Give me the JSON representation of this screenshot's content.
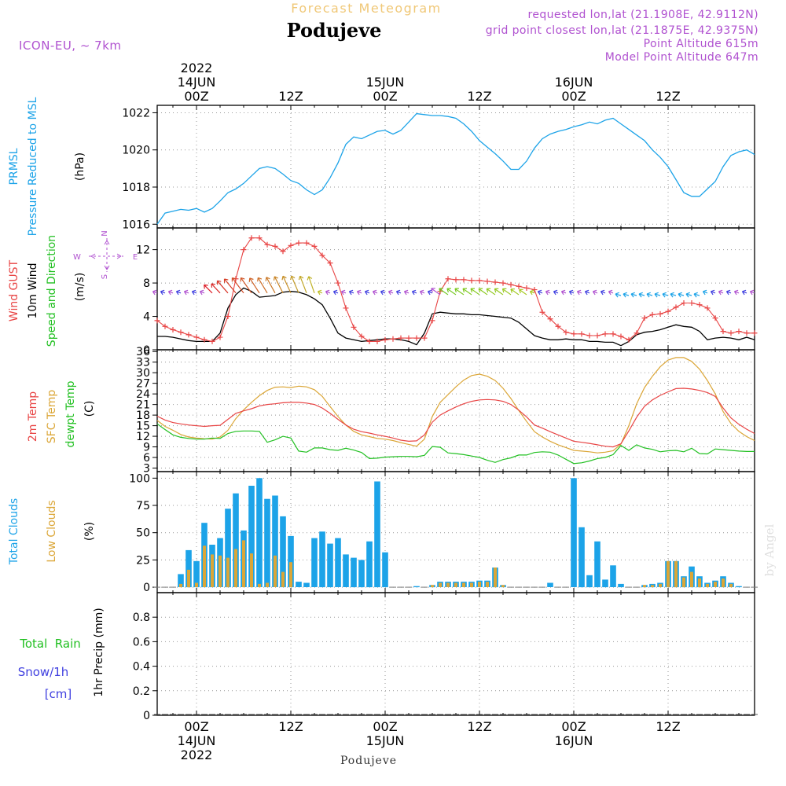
{
  "header": {
    "supertitle": "Forecast Meteogram",
    "location": "Podujeve",
    "model": "ICON-EU, ~ 7km",
    "requested": "requested lon,lat (21.1908E, 42.9112N)",
    "grid": "grid point closest lon,lat (21.1875E, 42.9375N)",
    "point_alt": "Point Altitude 615m",
    "model_alt": "Model Point Altitude 647m",
    "footer": "Podujeve",
    "credit": "by Angel"
  },
  "colors": {
    "pressure": "#1ca3e8",
    "gust": "#e84545",
    "wind": "#000000",
    "dir": "#22c022",
    "purple": "#b052d0",
    "t2m": "#e84545",
    "sfc": "#dba637",
    "dew": "#22c022",
    "total_cloud": "#1ca3e8",
    "low_cloud": "#dba637",
    "rain": "#22c022",
    "snow": "#4040e0"
  },
  "time_axis": {
    "top_row1": [
      {
        "t": 0,
        "label": "2022"
      },
      {
        "t": 24,
        "label": ""
      },
      {
        "t": 48,
        "label": ""
      }
    ],
    "top_row2": [
      {
        "t": 0,
        "label": "14JUN"
      },
      {
        "t": 24,
        "label": "15JUN"
      },
      {
        "t": 48,
        "label": "16JUN"
      }
    ],
    "top_row3": [
      {
        "t": 0,
        "label": "00Z"
      },
      {
        "t": 12,
        "label": "12Z"
      },
      {
        "t": 24,
        "label": "00Z"
      },
      {
        "t": 36,
        "label": "12Z"
      },
      {
        "t": 48,
        "label": "00Z"
      },
      {
        "t": 60,
        "label": "12Z"
      }
    ],
    "bottom_row1": [
      {
        "t": 0,
        "label": "00Z"
      },
      {
        "t": 12,
        "label": "12Z"
      },
      {
        "t": 24,
        "label": "00Z"
      },
      {
        "t": 36,
        "label": "12Z"
      },
      {
        "t": 48,
        "label": "00Z"
      },
      {
        "t": 60,
        "label": "12Z"
      }
    ],
    "bottom_row2": [
      {
        "t": 0,
        "label": "14JUN"
      },
      {
        "t": 24,
        "label": "15JUN"
      },
      {
        "t": 48,
        "label": "16JUN"
      }
    ],
    "bottom_row3": [
      {
        "t": 0,
        "label": "2022"
      }
    ],
    "range": [
      -5,
      71
    ]
  },
  "panel_labels": {
    "pressure": [
      "PRMSL",
      "Pressure Reduced to MSL",
      "(hPa)"
    ],
    "wind": [
      "Wind GUST",
      "10m Wind",
      "Speed and Direction",
      "(m/s)"
    ],
    "compass": {
      "n": "N",
      "s": "S",
      "w": "W",
      "e": "E"
    },
    "temp": [
      "2m Temp",
      "SFC Temp",
      "dewpt Temp",
      "(C)"
    ],
    "cloud": [
      "Total Clouds",
      "Low Clouds",
      "(%)"
    ],
    "precip": [
      "Total  Rain",
      "Snow/1h",
      "[cm]",
      "1hr Precip (mm)"
    ]
  },
  "chart_data": [
    {
      "type": "line",
      "name": "PRMSL",
      "ylim": [
        1015.8,
        1022.4
      ],
      "yticks": [
        1016,
        1018,
        1020,
        1022
      ],
      "x": [
        -5,
        -4,
        -3,
        -2,
        -1,
        0,
        1,
        2,
        3,
        4,
        5,
        6,
        7,
        8,
        9,
        10,
        11,
        12,
        13,
        14,
        15,
        16,
        17,
        18,
        19,
        20,
        21,
        22,
        23,
        24,
        25,
        26,
        27,
        28,
        29,
        30,
        31,
        32,
        33,
        34,
        35,
        36,
        37,
        38,
        39,
        40,
        41,
        42,
        43,
        44,
        45,
        46,
        47,
        48,
        49,
        50,
        51,
        52,
        53,
        54,
        55,
        56,
        57,
        58,
        59,
        60,
        61,
        62,
        63,
        64,
        65,
        66,
        67,
        68,
        69,
        70,
        71
      ],
      "values": [
        1016.0,
        1016.6,
        1016.7,
        1016.8,
        1016.75,
        1016.85,
        1016.65,
        1016.85,
        1017.25,
        1017.7,
        1017.9,
        1018.2,
        1018.6,
        1019.0,
        1019.1,
        1019.0,
        1018.7,
        1018.35,
        1018.2,
        1017.85,
        1017.6,
        1017.85,
        1018.5,
        1019.3,
        1020.3,
        1020.7,
        1020.6,
        1020.8,
        1021.0,
        1021.05,
        1020.85,
        1021.05,
        1021.5,
        1021.95,
        1021.9,
        1021.85,
        1021.85,
        1021.8,
        1021.7,
        1021.4,
        1021.0,
        1020.5,
        1020.15,
        1019.8,
        1019.4,
        1018.95,
        1018.95,
        1019.4,
        1020.1,
        1020.6,
        1020.85,
        1021.0,
        1021.1,
        1021.25,
        1021.35,
        1021.5,
        1021.4,
        1021.6,
        1021.7,
        1021.4,
        1021.1,
        1020.8,
        1020.5,
        1020.0,
        1019.6,
        1019.1,
        1018.4,
        1017.7,
        1017.5,
        1017.5,
        1017.9,
        1018.3,
        1019.1,
        1019.7,
        1019.9,
        1020.0,
        1019.75
      ]
    },
    {
      "type": "line",
      "name": "Wind",
      "ylim": [
        0,
        14.6
      ],
      "yticks": [
        0,
        4,
        8,
        12
      ],
      "x": [
        -5,
        -4,
        -3,
        -2,
        -1,
        0,
        1,
        2,
        3,
        4,
        5,
        6,
        7,
        8,
        9,
        10,
        11,
        12,
        13,
        14,
        15,
        16,
        17,
        18,
        19,
        20,
        21,
        22,
        23,
        24,
        25,
        26,
        27,
        28,
        29,
        30,
        31,
        32,
        33,
        34,
        35,
        36,
        37,
        38,
        39,
        40,
        41,
        42,
        43,
        44,
        45,
        46,
        47,
        48,
        49,
        50,
        51,
        52,
        53,
        54,
        55,
        56,
        57,
        58,
        59,
        60,
        61,
        62,
        63,
        64,
        65,
        66,
        67,
        68,
        69,
        70,
        71
      ],
      "gust": [
        3.5,
        2.8,
        2.4,
        2.1,
        1.8,
        1.5,
        1.2,
        1.0,
        1.5,
        4.0,
        8.5,
        12.0,
        13.4,
        13.4,
        12.6,
        12.4,
        11.8,
        12.5,
        12.8,
        12.8,
        12.4,
        11.3,
        10.4,
        8.0,
        5.0,
        2.7,
        1.6,
        1.0,
        1.0,
        1.2,
        1.3,
        1.4,
        1.4,
        1.4,
        1.4,
        3.5,
        7.0,
        8.5,
        8.4,
        8.4,
        8.3,
        8.3,
        8.2,
        8.1,
        8.0,
        7.8,
        7.6,
        7.4,
        7.2,
        4.5,
        3.7,
        2.8,
        2.1,
        1.9,
        1.9,
        1.7,
        1.7,
        1.9,
        1.9,
        1.6,
        1.2,
        2.0,
        3.8,
        4.2,
        4.3,
        4.6,
        5.1,
        5.6,
        5.6,
        5.4,
        5.0,
        3.8,
        2.2,
        2.0,
        2.2,
        2.0,
        2.0
      ],
      "wind": [
        1.6,
        1.6,
        1.5,
        1.3,
        1.1,
        1.0,
        1.0,
        1.0,
        2.0,
        5.0,
        6.6,
        7.4,
        7.0,
        6.3,
        6.4,
        6.5,
        6.9,
        7.0,
        6.9,
        6.6,
        6.1,
        5.4,
        3.8,
        2.0,
        1.4,
        1.2,
        1.0,
        1.1,
        1.2,
        1.3,
        1.3,
        1.2,
        1.0,
        0.6,
        2.0,
        4.3,
        4.5,
        4.4,
        4.3,
        4.3,
        4.2,
        4.2,
        4.1,
        4.0,
        3.9,
        3.8,
        3.3,
        2.5,
        1.7,
        1.4,
        1.2,
        1.2,
        1.3,
        1.2,
        1.2,
        1.0,
        1.0,
        0.9,
        0.9,
        0.5,
        1.0,
        1.8,
        2.1,
        2.2,
        2.4,
        2.7,
        3.0,
        2.8,
        2.7,
        2.2,
        1.2,
        1.4,
        1.5,
        1.4,
        1.2,
        1.5,
        1.2
      ]
    },
    {
      "type": "line",
      "name": "Temperature",
      "ylim": [
        2,
        36.5
      ],
      "yticks": [
        3,
        6,
        9,
        12,
        15,
        18,
        21,
        24,
        27,
        30,
        33,
        36
      ],
      "x": [
        -5,
        -4,
        -3,
        -2,
        -1,
        0,
        1,
        2,
        3,
        4,
        5,
        6,
        7,
        8,
        9,
        10,
        11,
        12,
        13,
        14,
        15,
        16,
        17,
        18,
        19,
        20,
        21,
        22,
        23,
        24,
        25,
        26,
        27,
        28,
        29,
        30,
        31,
        32,
        33,
        34,
        35,
        36,
        37,
        38,
        39,
        40,
        41,
        42,
        43,
        44,
        45,
        46,
        47,
        48,
        49,
        50,
        51,
        52,
        53,
        54,
        55,
        56,
        57,
        58,
        59,
        60,
        61,
        62,
        63,
        64,
        65,
        66,
        67,
        68,
        69,
        70,
        71
      ],
      "t2m": [
        17.7,
        16.6,
        15.9,
        15.5,
        15.2,
        15.0,
        14.8,
        15.0,
        15.1,
        16.8,
        18.5,
        19.2,
        19.8,
        20.6,
        21.0,
        21.2,
        21.5,
        21.6,
        21.6,
        21.4,
        21.0,
        20.0,
        18.5,
        16.8,
        15.2,
        14.0,
        13.3,
        12.9,
        12.4,
        12.0,
        11.5,
        10.9,
        10.6,
        10.7,
        12.4,
        16.0,
        18.0,
        19.2,
        20.3,
        21.2,
        21.9,
        22.3,
        22.4,
        22.3,
        21.9,
        21.0,
        19.4,
        17.5,
        15.2,
        14.3,
        13.3,
        12.4,
        11.5,
        10.6,
        10.3,
        10.0,
        9.6,
        9.2,
        9.0,
        9.9,
        13.5,
        17.4,
        20.5,
        22.3,
        23.6,
        24.6,
        25.5,
        25.6,
        25.4,
        25.0,
        24.4,
        23.3,
        20.0,
        17.2,
        15.4,
        14.0,
        12.8
      ],
      "sfc": [
        16.5,
        14.8,
        13.7,
        12.5,
        11.8,
        11.5,
        11.3,
        11.2,
        11.8,
        13.7,
        17.0,
        19.5,
        21.6,
        23.5,
        25.0,
        25.9,
        26.0,
        25.8,
        26.2,
        26.0,
        25.2,
        23.3,
        20.4,
        17.6,
        15.2,
        13.4,
        12.4,
        11.9,
        11.4,
        11.2,
        10.8,
        10.2,
        9.7,
        9.2,
        11.2,
        17.6,
        21.6,
        23.8,
        26.0,
        27.9,
        29.2,
        29.6,
        29.0,
        27.8,
        25.6,
        22.7,
        19.3,
        16.2,
        13.3,
        11.8,
        10.6,
        9.6,
        8.8,
        8.0,
        7.8,
        7.6,
        7.3,
        7.5,
        7.9,
        9.8,
        15.0,
        21.2,
        25.8,
        29.0,
        31.7,
        33.6,
        34.3,
        34.3,
        33.2,
        31.0,
        27.8,
        24.0,
        19.0,
        15.6,
        13.4,
        11.9,
        10.8
      ],
      "dew": [
        15.5,
        13.9,
        12.4,
        11.7,
        11.4,
        11.2,
        11.2,
        11.5,
        11.4,
        12.8,
        13.4,
        13.5,
        13.5,
        13.4,
        10.3,
        11.0,
        12.0,
        11.5,
        7.8,
        7.5,
        8.7,
        8.7,
        8.2,
        8.0,
        8.6,
        8.1,
        7.4,
        5.7,
        5.8,
        6.1,
        6.2,
        6.3,
        6.3,
        6.2,
        6.6,
        9.1,
        8.9,
        7.3,
        7.1,
        6.8,
        6.4,
        6.0,
        5.2,
        4.6,
        5.4,
        5.9,
        6.7,
        6.7,
        7.4,
        7.6,
        7.5,
        6.7,
        5.5,
        4.3,
        4.5,
        5.0,
        5.7,
        6.0,
        6.8,
        9.4,
        8.0,
        9.6,
        8.7,
        8.3,
        7.6,
        7.9,
        8.0,
        7.6,
        8.6,
        7.1,
        7.0,
        8.4,
        8.2,
        8.0,
        7.8,
        7.7,
        7.7
      ]
    },
    {
      "type": "bar",
      "name": "Clouds",
      "ylim": [
        -5,
        106
      ],
      "yticks": [
        0,
        25,
        50,
        75,
        100
      ],
      "x": [
        -5,
        -4,
        -3,
        -2,
        -1,
        0,
        1,
        2,
        3,
        4,
        5,
        6,
        7,
        8,
        9,
        10,
        11,
        12,
        13,
        14,
        15,
        16,
        17,
        18,
        19,
        20,
        21,
        22,
        23,
        24,
        25,
        26,
        27,
        28,
        29,
        30,
        31,
        32,
        33,
        34,
        35,
        36,
        37,
        38,
        39,
        40,
        41,
        42,
        43,
        44,
        45,
        46,
        47,
        48,
        49,
        50,
        51,
        52,
        53,
        54,
        55,
        56,
        57,
        58,
        59,
        60,
        61,
        62,
        63,
        64,
        65,
        66,
        67,
        68,
        69,
        70,
        71
      ],
      "total": [
        0,
        0,
        0,
        12,
        34,
        24,
        59,
        39,
        45,
        72,
        86,
        52,
        93,
        100,
        81,
        84,
        65,
        47,
        5,
        4,
        45,
        51,
        40,
        45,
        30,
        27,
        25,
        42,
        97,
        32,
        0,
        0,
        0,
        1,
        0,
        2,
        5,
        5,
        5,
        5,
        5,
        6,
        6,
        18,
        2,
        0,
        0,
        0,
        0,
        0,
        4,
        0,
        0,
        100,
        55,
        11,
        42,
        7,
        20,
        3,
        0,
        0,
        2,
        3,
        4,
        24,
        24,
        10,
        19,
        10,
        4,
        6,
        10,
        4,
        1,
        0,
        0
      ],
      "low": [
        0,
        0,
        0,
        3,
        16,
        4,
        38,
        30,
        29,
        27,
        35,
        43,
        31,
        3,
        4,
        29,
        14,
        23,
        0,
        0,
        0,
        0,
        0,
        0,
        0,
        0,
        0,
        0,
        0,
        0,
        0,
        0,
        0,
        0,
        0,
        2,
        4,
        4,
        4,
        4,
        4,
        5,
        5,
        18,
        2,
        0,
        0,
        0,
        0,
        0,
        0,
        0,
        0,
        0,
        0,
        0,
        0,
        0,
        0,
        0,
        0,
        0,
        2,
        2,
        3,
        24,
        24,
        9,
        14,
        8,
        3,
        5,
        8,
        3,
        0,
        0,
        0
      ]
    },
    {
      "type": "bar",
      "name": "Precipitation",
      "ylim": [
        0,
        1.0
      ],
      "yticks": [
        0,
        0.2,
        0.4,
        0.6,
        0.8
      ],
      "x": [
        -5,
        -4,
        -3,
        -2,
        -1,
        0,
        1,
        2,
        3,
        4,
        5,
        6,
        7,
        8,
        9,
        10,
        11,
        12,
        13,
        14,
        15,
        16,
        17,
        18,
        19,
        20,
        21,
        22,
        23,
        24,
        25,
        26,
        27,
        28,
        29,
        30,
        31,
        32,
        33,
        34,
        35,
        36,
        37,
        38,
        39,
        40,
        41,
        42,
        43,
        44,
        45,
        46,
        47,
        48,
        49,
        50,
        51,
        52,
        53,
        54,
        55,
        56,
        57,
        58,
        59,
        60,
        61,
        62,
        63,
        64,
        65,
        66,
        67,
        68,
        69,
        70,
        71
      ],
      "values": [
        0,
        0,
        0,
        0,
        0,
        0,
        0,
        0,
        0,
        0,
        0,
        0,
        0,
        0,
        0,
        0,
        0,
        0,
        0,
        0,
        0,
        0,
        0,
        0,
        0,
        0,
        0,
        0,
        0,
        0,
        0,
        0,
        0,
        0,
        0,
        0,
        0,
        0,
        0,
        0,
        0,
        0,
        0,
        0,
        0,
        0,
        0,
        0,
        0,
        0,
        0,
        0,
        0,
        0,
        0,
        0,
        0,
        0,
        0,
        0,
        0,
        0,
        0,
        0,
        0,
        0,
        0,
        0,
        0,
        0,
        0,
        0,
        0,
        0,
        0,
        0,
        0
      ]
    }
  ]
}
